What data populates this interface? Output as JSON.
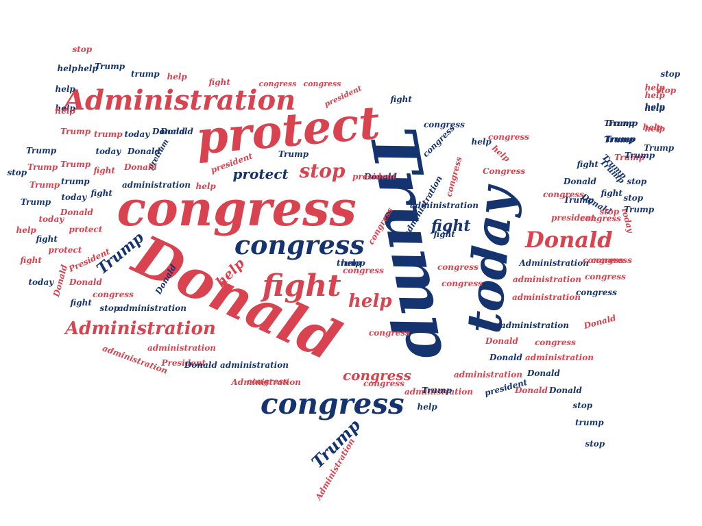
{
  "colors": {
    "red": "#d9434f",
    "blue": "#15346f",
    "background": "#ffffff"
  },
  "words": [
    {
      "text": "Trump",
      "color": "blue"
    },
    {
      "text": "today",
      "color": "blue"
    },
    {
      "text": "Donald",
      "color": "red"
    },
    {
      "text": "congress",
      "color": "red"
    },
    {
      "text": "protect",
      "color": "red"
    },
    {
      "text": "Administration",
      "color": "red"
    },
    {
      "text": "congress",
      "color": "blue"
    },
    {
      "text": "congress",
      "color": "blue"
    },
    {
      "text": "fight",
      "color": "red"
    },
    {
      "text": "help",
      "color": "red"
    },
    {
      "text": "Donald",
      "color": "red"
    },
    {
      "text": "Administration",
      "color": "red"
    },
    {
      "text": "stop",
      "color": "red"
    },
    {
      "text": "protect",
      "color": "blue"
    },
    {
      "text": "fight",
      "color": "blue"
    },
    {
      "text": "congress",
      "color": "red"
    },
    {
      "text": "Trump",
      "color": "blue"
    },
    {
      "text": "Trump",
      "color": "blue"
    },
    {
      "text": "help",
      "color": "red"
    },
    {
      "text": "Donald",
      "color": "blue"
    },
    {
      "text": "stop",
      "color": "red"
    },
    {
      "text": "help",
      "color": "blue"
    },
    {
      "text": "help",
      "color": "blue"
    },
    {
      "text": "Trump",
      "color": "blue"
    },
    {
      "text": "trump",
      "color": "blue"
    },
    {
      "text": "help",
      "color": "red"
    },
    {
      "text": "help",
      "color": "blue"
    },
    {
      "text": "fight",
      "color": "red"
    },
    {
      "text": "congress",
      "color": "red"
    },
    {
      "text": "congress",
      "color": "red"
    },
    {
      "text": "president",
      "color": "red"
    },
    {
      "text": "fight",
      "color": "blue"
    },
    {
      "text": "help",
      "color": "blue"
    },
    {
      "text": "help",
      "color": "red"
    },
    {
      "text": "help",
      "color": "blue"
    },
    {
      "text": "Trump",
      "color": "red"
    },
    {
      "text": "trump",
      "color": "red"
    },
    {
      "text": "today",
      "color": "blue"
    },
    {
      "text": "Donald",
      "color": "blue"
    },
    {
      "text": "Trump",
      "color": "blue"
    },
    {
      "text": "Trump",
      "color": "blue"
    },
    {
      "text": "today",
      "color": "blue"
    },
    {
      "text": "Donald",
      "color": "blue"
    },
    {
      "text": "pretium",
      "color": "blue"
    },
    {
      "text": "Trump",
      "color": "blue"
    },
    {
      "text": "stop",
      "color": "blue"
    },
    {
      "text": "Trump",
      "color": "red"
    },
    {
      "text": "Trump",
      "color": "red"
    },
    {
      "text": "fight",
      "color": "red"
    },
    {
      "text": "Donald",
      "color": "red"
    },
    {
      "text": "president",
      "color": "red"
    },
    {
      "text": "Trump",
      "color": "red"
    },
    {
      "text": "trump",
      "color": "blue"
    },
    {
      "text": "fight",
      "color": "blue"
    },
    {
      "text": "administration",
      "color": "blue"
    },
    {
      "text": "help",
      "color": "red"
    },
    {
      "text": "Trump",
      "color": "blue"
    },
    {
      "text": "today",
      "color": "blue"
    },
    {
      "text": "Donald",
      "color": "red"
    },
    {
      "text": "help",
      "color": "red"
    },
    {
      "text": "protect",
      "color": "red"
    },
    {
      "text": "today",
      "color": "red"
    },
    {
      "text": "fight",
      "color": "blue"
    },
    {
      "text": "protect",
      "color": "red"
    },
    {
      "text": "fight",
      "color": "red"
    },
    {
      "text": "President",
      "color": "red"
    },
    {
      "text": "today",
      "color": "blue"
    },
    {
      "text": "Donald",
      "color": "red"
    },
    {
      "text": "Donald",
      "color": "red"
    },
    {
      "text": "congress",
      "color": "red"
    },
    {
      "text": "fight",
      "color": "blue"
    },
    {
      "text": "stop",
      "color": "blue"
    },
    {
      "text": "administration",
      "color": "blue"
    },
    {
      "text": "Donald",
      "color": "blue"
    },
    {
      "text": "Trump",
      "color": "blue"
    },
    {
      "text": "Donald",
      "color": "blue"
    },
    {
      "text": "administration",
      "color": "blue"
    },
    {
      "text": "congress",
      "color": "red"
    },
    {
      "text": "administration",
      "color": "red"
    },
    {
      "text": "Administration",
      "color": "red"
    },
    {
      "text": "congress",
      "color": "red"
    },
    {
      "text": "congress",
      "color": "red"
    },
    {
      "text": "congress",
      "color": "red"
    },
    {
      "text": "Trump",
      "color": "blue"
    },
    {
      "text": "help",
      "color": "red"
    },
    {
      "text": "stop",
      "color": "blue"
    },
    {
      "text": "stop",
      "color": "red"
    },
    {
      "text": "help",
      "color": "blue"
    },
    {
      "text": "help",
      "color": "red"
    },
    {
      "text": "Trump",
      "color": "blue"
    },
    {
      "text": "Trump",
      "color": "blue"
    },
    {
      "text": "Trump",
      "color": "blue"
    },
    {
      "text": "Trump",
      "color": "red"
    },
    {
      "text": "fight",
      "color": "blue"
    },
    {
      "text": "Trump",
      "color": "blue"
    },
    {
      "text": "stop",
      "color": "blue"
    },
    {
      "text": "Donald",
      "color": "blue"
    },
    {
      "text": "fight",
      "color": "blue"
    },
    {
      "text": "stop",
      "color": "blue"
    },
    {
      "text": "congress",
      "color": "red"
    },
    {
      "text": "Donald",
      "color": "blue"
    },
    {
      "text": "president",
      "color": "red"
    },
    {
      "text": "today",
      "color": "red"
    },
    {
      "text": "fight",
      "color": "blue"
    },
    {
      "text": "congress",
      "color": "blue"
    },
    {
      "text": "congress",
      "color": "blue"
    },
    {
      "text": "congress",
      "color": "red"
    },
    {
      "text": "help",
      "color": "red"
    },
    {
      "text": "congress",
      "color": "red"
    },
    {
      "text": "Congress",
      "color": "red"
    },
    {
      "text": "president",
      "color": "red"
    },
    {
      "text": "help",
      "color": "blue"
    },
    {
      "text": "administration",
      "color": "blue"
    },
    {
      "text": "Trump",
      "color": "blue"
    },
    {
      "text": "congress",
      "color": "red"
    },
    {
      "text": "congress",
      "color": "red"
    },
    {
      "text": "congress",
      "color": "red"
    },
    {
      "text": "Administration",
      "color": "blue"
    },
    {
      "text": "administration",
      "color": "red"
    },
    {
      "text": "administration",
      "color": "red"
    },
    {
      "text": "administration",
      "color": "blue"
    },
    {
      "text": "congress",
      "color": "blue"
    },
    {
      "text": "Donald",
      "color": "red"
    },
    {
      "text": "congress",
      "color": "red"
    },
    {
      "text": "congress",
      "color": "red"
    },
    {
      "text": "congress",
      "color": "red"
    },
    {
      "text": "Donald",
      "color": "red"
    },
    {
      "text": "administration",
      "color": "red"
    },
    {
      "text": "Donald",
      "color": "blue"
    },
    {
      "text": "administration",
      "color": "red"
    },
    {
      "text": "Donald",
      "color": "blue"
    },
    {
      "text": "president",
      "color": "blue"
    },
    {
      "text": "Donald",
      "color": "red"
    },
    {
      "text": "Donald",
      "color": "blue"
    },
    {
      "text": "stop",
      "color": "blue"
    },
    {
      "text": "trump",
      "color": "blue"
    },
    {
      "text": "stop",
      "color": "blue"
    },
    {
      "text": "Trump",
      "color": "blue"
    },
    {
      "text": "help",
      "color": "blue"
    },
    {
      "text": "administration",
      "color": "red"
    },
    {
      "text": "President",
      "color": "red"
    },
    {
      "text": "Donald administration",
      "color": "blue"
    },
    {
      "text": "congress",
      "color": "red"
    },
    {
      "text": "administration",
      "color": "red"
    },
    {
      "text": "Administration",
      "color": "red"
    },
    {
      "text": "Trump",
      "color": "blue"
    },
    {
      "text": "help",
      "color": "red"
    },
    {
      "text": "Trump",
      "color": "blue"
    },
    {
      "text": "stop",
      "color": "red"
    },
    {
      "text": "congress",
      "color": "red"
    },
    {
      "text": "help",
      "color": "red"
    },
    {
      "text": "help",
      "color": "blue"
    },
    {
      "text": "trump",
      "color": "blue"
    }
  ]
}
